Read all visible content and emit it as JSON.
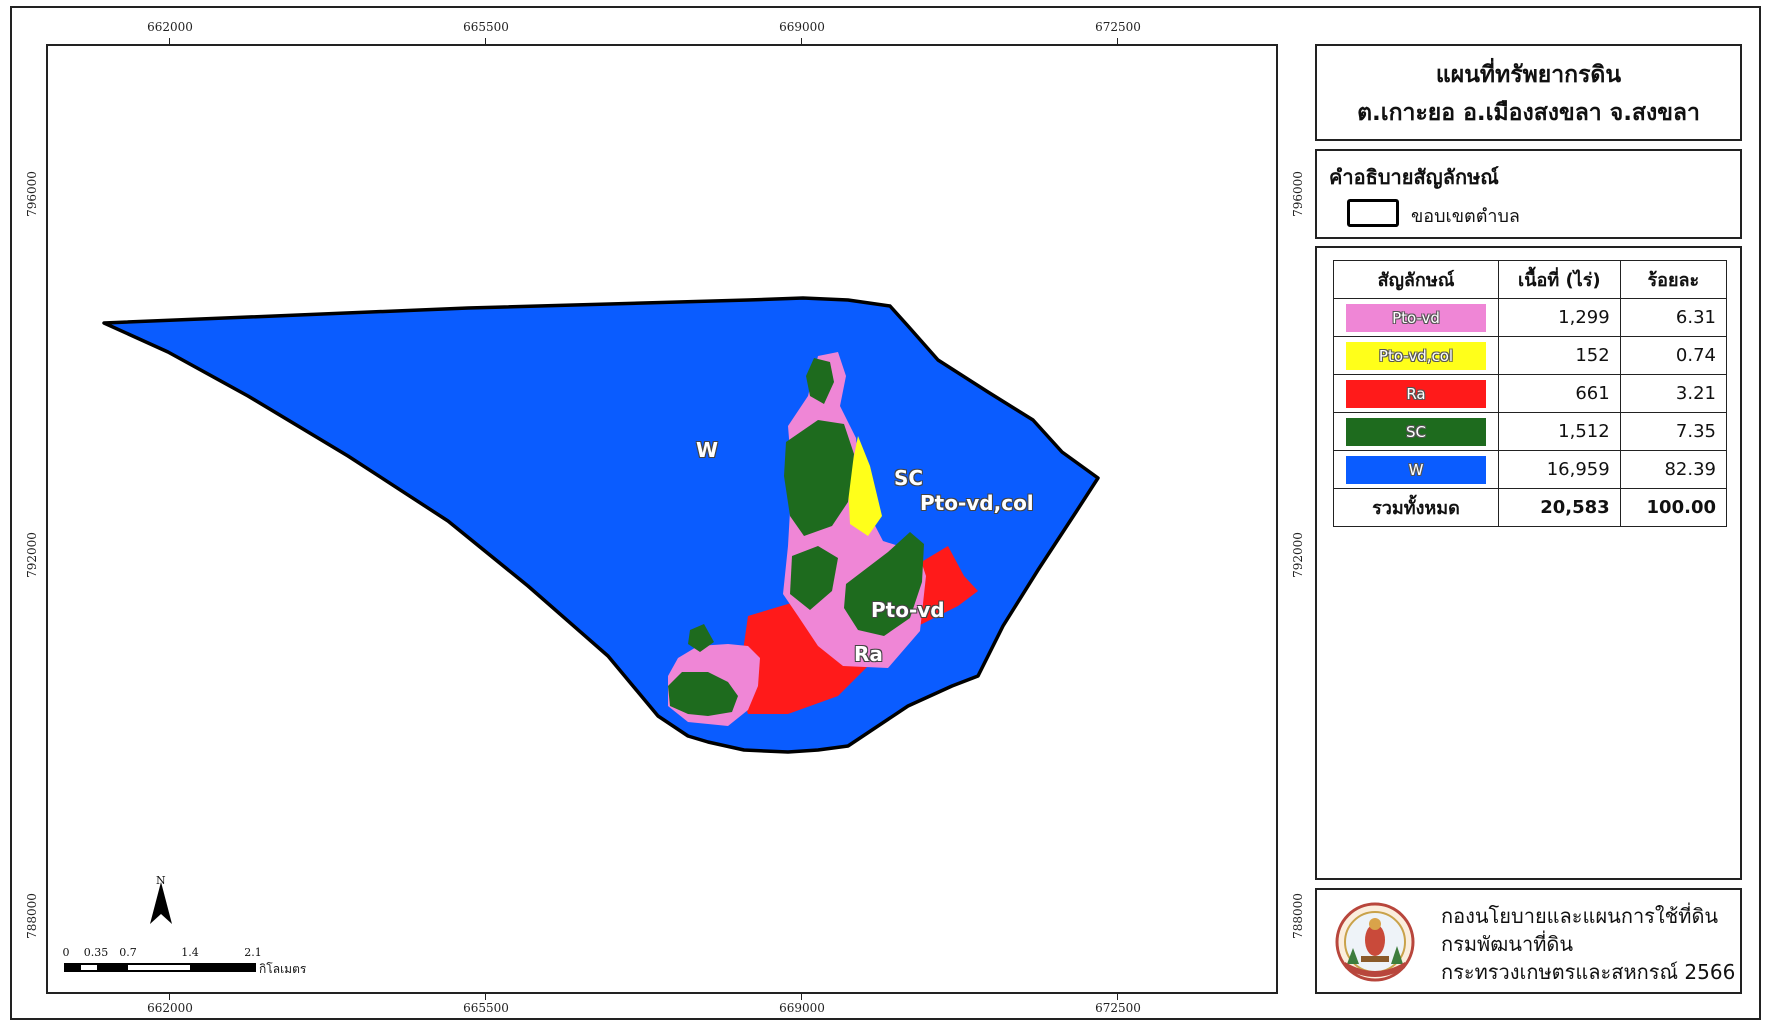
{
  "title": {
    "line1": "แผนที่ทรัพยากรดิน",
    "line2": "ต.เกาะยอ อ.เมืองสงขลา จ.สงขลา"
  },
  "legend": {
    "heading": "คำอธิบายสัญลักษณ์",
    "boundary_label": "ขอบเขตตำบล"
  },
  "soil_table": {
    "headers": [
      "สัญลักษณ์",
      "เนื้อที่ (ไร่)",
      "ร้อยละ"
    ],
    "rows": [
      {
        "symbol": "Pto-vd",
        "area": "1,299",
        "percent": "6.31",
        "color": "#ef86d6"
      },
      {
        "symbol": "Pto-vd,col",
        "area": "152",
        "percent": "0.74",
        "color": "#ffff1a"
      },
      {
        "symbol": "Ra",
        "area": "661",
        "percent": "3.21",
        "color": "#ff1a1a"
      },
      {
        "symbol": "SC",
        "area": "1,512",
        "percent": "7.35",
        "color": "#1e6b1e"
      },
      {
        "symbol": "W",
        "area": "16,959",
        "percent": "82.39",
        "color": "#0a5cff"
      }
    ],
    "total": {
      "label": "รวมทั้งหมด",
      "area": "20,583",
      "percent": "100.00"
    }
  },
  "credits": {
    "line1": "กองนโยบายและแผนการใช้ที่ดิน",
    "line2": "กรมพัฒนาที่ดิน",
    "line3": "กระทรวงเกษตรและสหกรณ์ 2566"
  },
  "grid": {
    "x_ticks": [
      "662000",
      "665500",
      "669000",
      "672500"
    ],
    "y_ticks": [
      "796000",
      "792000",
      "788000"
    ]
  },
  "map_labels": {
    "w": "W",
    "sc": "SC",
    "pto_vd_col": "Pto-vd,col",
    "pto_vd": "Pto-vd",
    "ra": "Ra"
  },
  "north_arrow": {
    "letter": "N"
  },
  "scale_bar": {
    "labels": [
      "0",
      "0.35",
      "0.7",
      "1.4",
      "2.1"
    ],
    "unit": "กิโลเมตร"
  },
  "colors": {
    "water": "#0a5cff",
    "pto_vd": "#ef86d6",
    "pto_vd_col": "#ffff1a",
    "ra": "#ff1a1a",
    "sc": "#1e6b1e"
  }
}
